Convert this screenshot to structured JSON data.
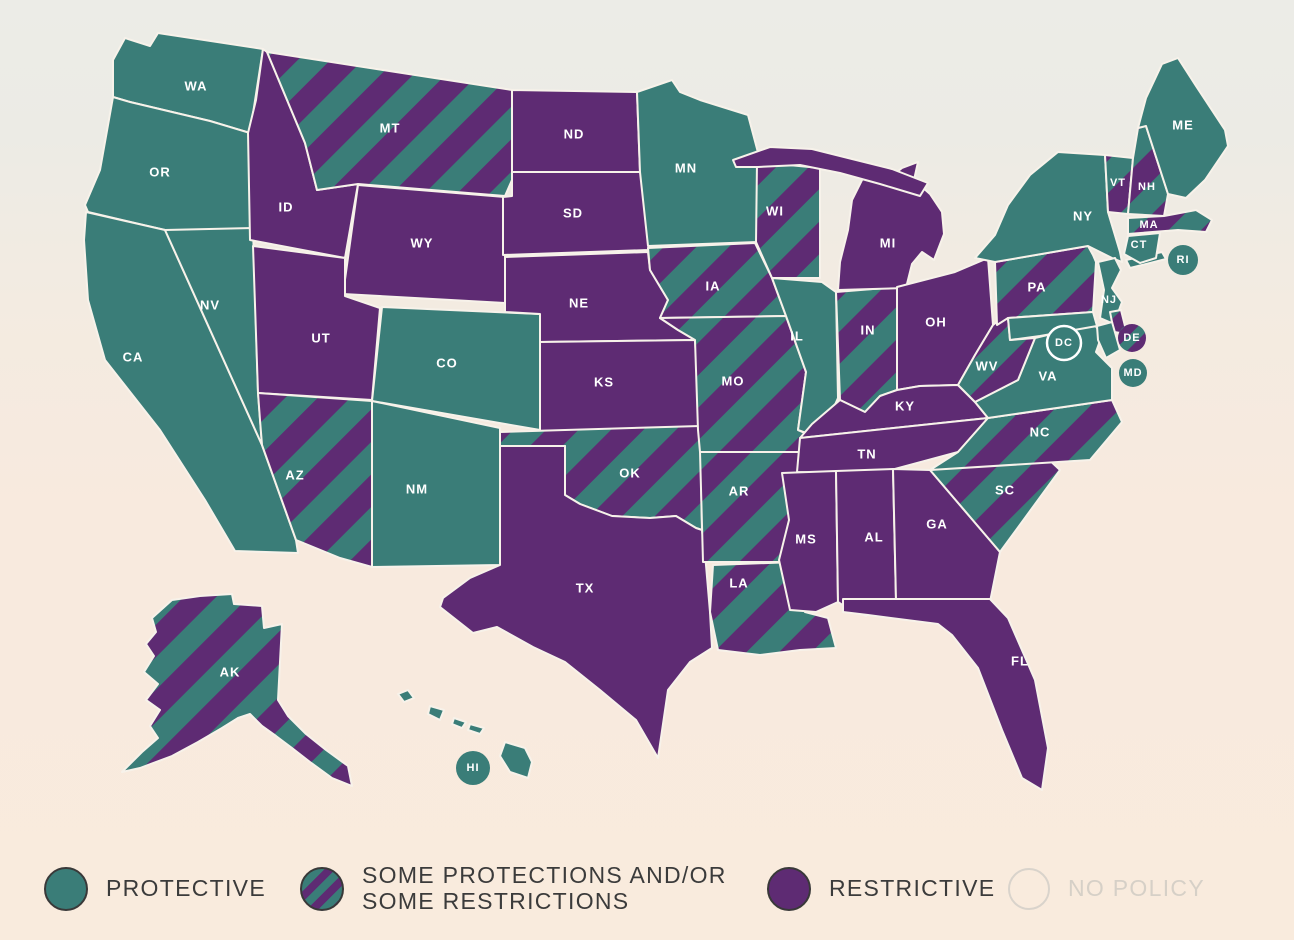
{
  "legend": {
    "items": [
      {
        "id": "protective",
        "label": "PROTECTIVE"
      },
      {
        "id": "mixed",
        "label": "SOME PROTECTIONS AND/OR SOME RESTRICTIONS"
      },
      {
        "id": "restrictive",
        "label": "RESTRICTIVE"
      },
      {
        "id": "no_policy",
        "label": "NO POLICY",
        "inactive": true
      }
    ]
  },
  "colors": {
    "teal": "#3A7D78",
    "purple": "#5E2B73",
    "background_top": "#ECECE7",
    "background_bottom": "#F9EBDD",
    "border": "#F7F2EA",
    "legend_text": "#3B3B3B",
    "no_policy_muted": "#D6D0C7",
    "state_label": "#FFFFFF"
  },
  "states": [
    {
      "abbr": "WA",
      "category": "protective"
    },
    {
      "abbr": "OR",
      "category": "protective"
    },
    {
      "abbr": "CA",
      "category": "protective"
    },
    {
      "abbr": "NV",
      "category": "protective"
    },
    {
      "abbr": "ID",
      "category": "restrictive"
    },
    {
      "abbr": "MT",
      "category": "mixed"
    },
    {
      "abbr": "WY",
      "category": "restrictive"
    },
    {
      "abbr": "UT",
      "category": "restrictive"
    },
    {
      "abbr": "CO",
      "category": "protective"
    },
    {
      "abbr": "AZ",
      "category": "mixed"
    },
    {
      "abbr": "NM",
      "category": "protective"
    },
    {
      "abbr": "ND",
      "category": "restrictive"
    },
    {
      "abbr": "SD",
      "category": "restrictive"
    },
    {
      "abbr": "NE",
      "category": "restrictive"
    },
    {
      "abbr": "KS",
      "category": "restrictive"
    },
    {
      "abbr": "OK",
      "category": "mixed"
    },
    {
      "abbr": "TX",
      "category": "restrictive"
    },
    {
      "abbr": "MN",
      "category": "protective"
    },
    {
      "abbr": "IA",
      "category": "mixed"
    },
    {
      "abbr": "MO",
      "category": "mixed"
    },
    {
      "abbr": "AR",
      "category": "mixed"
    },
    {
      "abbr": "LA",
      "category": "mixed"
    },
    {
      "abbr": "WI",
      "category": "mixed"
    },
    {
      "abbr": "IL",
      "category": "protective"
    },
    {
      "abbr": "IN",
      "category": "mixed"
    },
    {
      "abbr": "MI",
      "category": "restrictive"
    },
    {
      "abbr": "OH",
      "category": "restrictive"
    },
    {
      "abbr": "KY",
      "category": "restrictive"
    },
    {
      "abbr": "TN",
      "category": "restrictive"
    },
    {
      "abbr": "MS",
      "category": "restrictive"
    },
    {
      "abbr": "AL",
      "category": "restrictive"
    },
    {
      "abbr": "GA",
      "category": "restrictive"
    },
    {
      "abbr": "FL",
      "category": "restrictive"
    },
    {
      "abbr": "SC",
      "category": "mixed"
    },
    {
      "abbr": "NC",
      "category": "mixed"
    },
    {
      "abbr": "VA",
      "category": "protective"
    },
    {
      "abbr": "WV",
      "category": "mixed"
    },
    {
      "abbr": "PA",
      "category": "mixed"
    },
    {
      "abbr": "NY",
      "category": "protective"
    },
    {
      "abbr": "NJ",
      "category": "protective"
    },
    {
      "abbr": "VT",
      "category": "mixed"
    },
    {
      "abbr": "NH",
      "category": "mixed"
    },
    {
      "abbr": "MA",
      "category": "mixed"
    },
    {
      "abbr": "CT",
      "category": "protective"
    },
    {
      "abbr": "ME",
      "category": "protective"
    },
    {
      "abbr": "DE",
      "category": "mixed"
    },
    {
      "abbr": "MD",
      "category": "protective"
    },
    {
      "abbr": "RI",
      "category": "protective"
    },
    {
      "abbr": "DC",
      "category": "protective"
    },
    {
      "abbr": "AK",
      "category": "mixed"
    },
    {
      "abbr": "HI",
      "category": "protective"
    }
  ]
}
